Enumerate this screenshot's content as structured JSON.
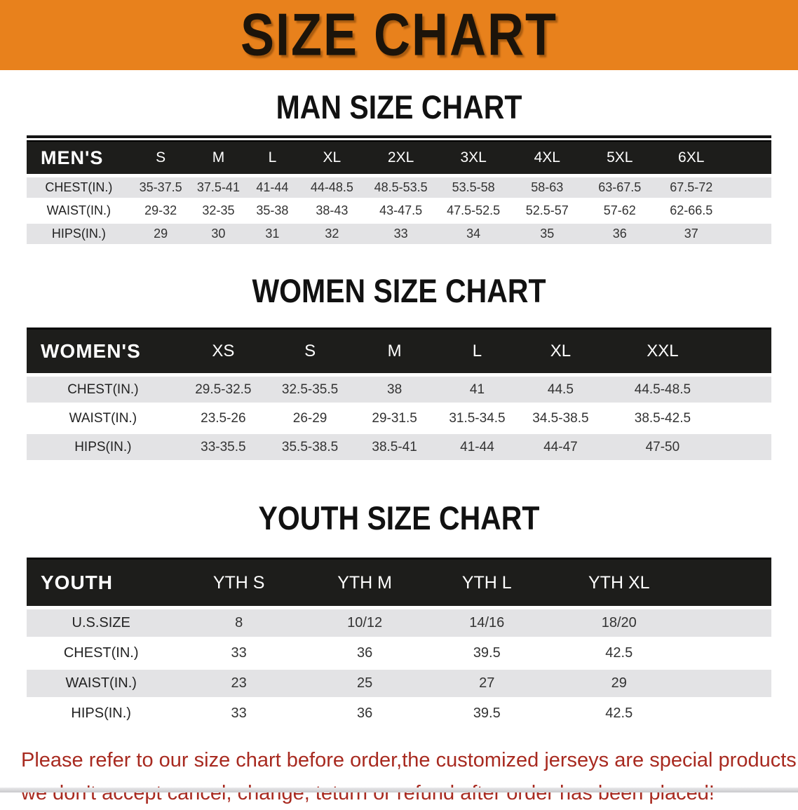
{
  "banner": {
    "title": "SIZE CHART"
  },
  "sections": [
    {
      "title": "MAN SIZE CHART",
      "header_label": "MEN'S",
      "columns": [
        "S",
        "M",
        "L",
        "XL",
        "2XL",
        "3XL",
        "4XL",
        "5XL",
        "6XL"
      ],
      "rows": [
        {
          "label": "CHEST(IN.)",
          "values": [
            "35-37.5",
            "37.5-41",
            "41-44",
            "44-48.5",
            "48.5-53.5",
            "53.5-58",
            "58-63",
            "63-67.5",
            "67.5-72"
          ]
        },
        {
          "label": "WAIST(IN.)",
          "values": [
            "29-32",
            "32-35",
            "35-38",
            "38-43",
            "43-47.5",
            "47.5-52.5",
            "52.5-57",
            "57-62",
            "62-66.5"
          ]
        },
        {
          "label": "HIPS(IN.)",
          "values": [
            "29",
            "30",
            "31",
            "32",
            "33",
            "34",
            "35",
            "36",
            "37"
          ]
        }
      ]
    },
    {
      "title": "WOMEN SIZE CHART",
      "header_label": "WOMEN'S",
      "columns": [
        "XS",
        "S",
        "M",
        "L",
        "XL",
        "XXL"
      ],
      "rows": [
        {
          "label": "CHEST(IN.)",
          "values": [
            "29.5-32.5",
            "32.5-35.5",
            "38",
            "41",
            "44.5",
            "44.5-48.5"
          ]
        },
        {
          "label": "WAIST(IN.)",
          "values": [
            "23.5-26",
            "26-29",
            "29-31.5",
            "31.5-34.5",
            "34.5-38.5",
            "38.5-42.5"
          ]
        },
        {
          "label": "HIPS(IN.)",
          "values": [
            "33-35.5",
            "35.5-38.5",
            "38.5-41",
            "41-44",
            "44-47",
            "47-50"
          ]
        }
      ]
    },
    {
      "title": "YOUTH SIZE CHART",
      "header_label": "YOUTH",
      "columns": [
        "YTH S",
        "YTH M",
        "YTH L",
        "YTH XL"
      ],
      "rows": [
        {
          "label": "U.S.SIZE",
          "values": [
            "8",
            "10/12",
            "14/16",
            "18/20"
          ]
        },
        {
          "label": "CHEST(IN.)",
          "values": [
            "33",
            "36",
            "39.5",
            "42.5"
          ]
        },
        {
          "label": "WAIST(IN.)",
          "values": [
            "23",
            "25",
            "27",
            "29"
          ]
        },
        {
          "label": "HIPS(IN.)",
          "values": [
            "33",
            "36",
            "39.5",
            "42.5"
          ]
        }
      ]
    }
  ],
  "notice": {
    "line1": "Please refer to our size chart before order,the customized jerseys are special products,",
    "line2": "we don't accept cancel, change, teturn or refund after order has been placed!"
  },
  "colors": {
    "banner_bg": "#e8811c",
    "header_bar_bg": "#1d1d1b",
    "row_shade": "#e3e3e5",
    "notice_red": "#a82a20"
  }
}
